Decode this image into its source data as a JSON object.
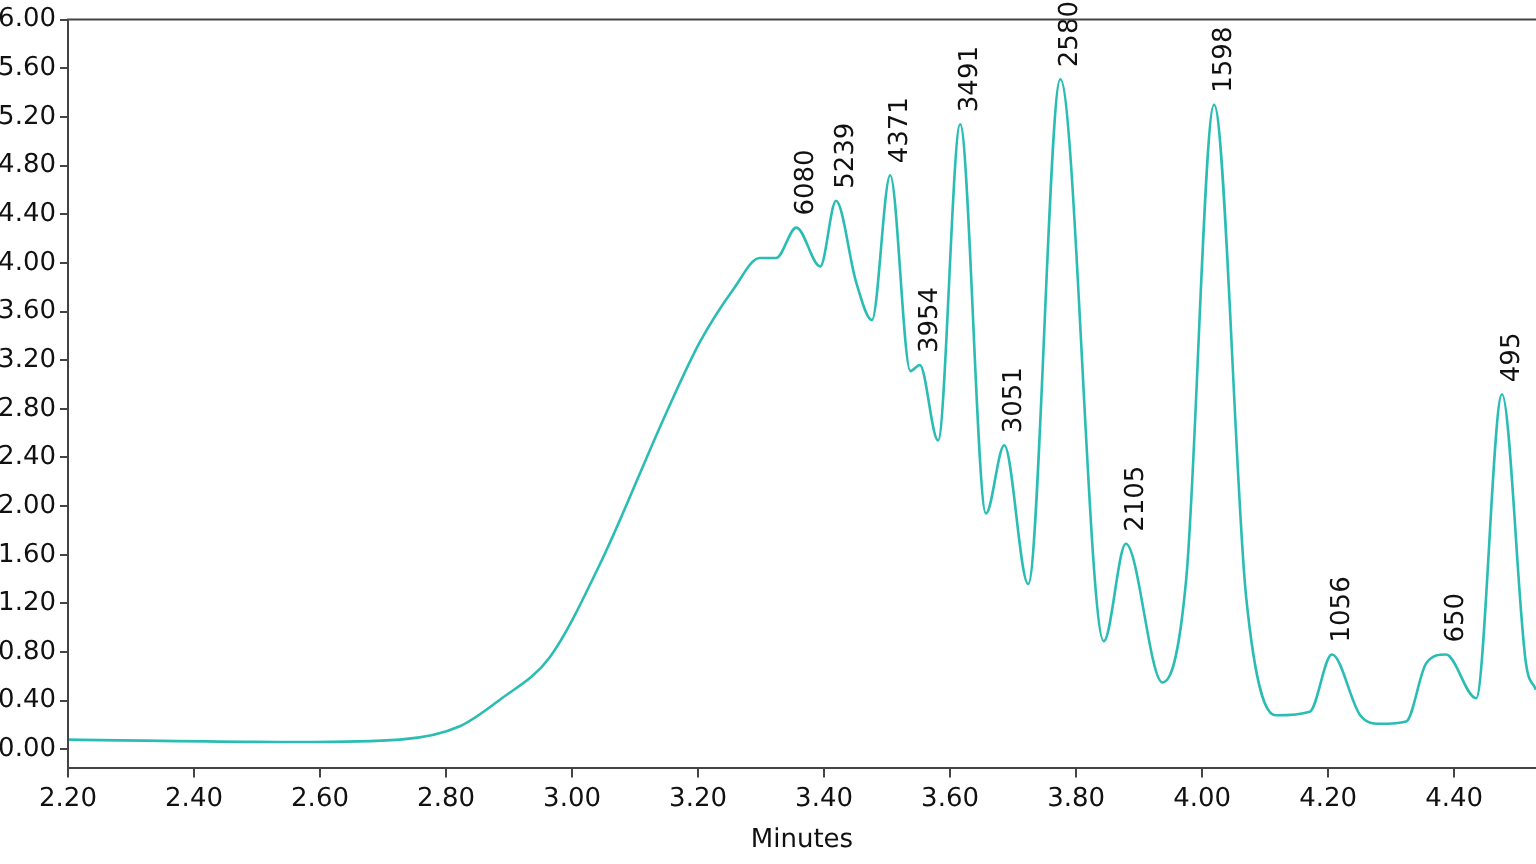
{
  "chart_data": {
    "type": "line",
    "xlabel": "Minutes",
    "xlim": [
      2.2,
      4.53
    ],
    "ylim": [
      -0.15,
      6.0
    ],
    "xticks": [
      {
        "value": 2.2,
        "label": "2.20"
      },
      {
        "value": 2.4,
        "label": "2.40"
      },
      {
        "value": 2.6,
        "label": "2.60"
      },
      {
        "value": 2.8,
        "label": "2.80"
      },
      {
        "value": 3.0,
        "label": "3.00"
      },
      {
        "value": 3.2,
        "label": "3.20"
      },
      {
        "value": 3.4,
        "label": "3.40"
      },
      {
        "value": 3.6,
        "label": "3.60"
      },
      {
        "value": 3.8,
        "label": "3.80"
      },
      {
        "value": 4.0,
        "label": "4.00"
      },
      {
        "value": 4.2,
        "label": "4.20"
      },
      {
        "value": 4.4,
        "label": "4.40"
      }
    ],
    "yticks": [
      {
        "value": 0,
        "label": "0.00"
      },
      {
        "value": 0.4,
        "label": "0.40"
      },
      {
        "value": 0.8,
        "label": "0.80"
      },
      {
        "value": 1.2,
        "label": "1.20"
      },
      {
        "value": 1.6,
        "label": "1.60"
      },
      {
        "value": 2.0,
        "label": "2.00"
      },
      {
        "value": 2.4,
        "label": "2.40"
      },
      {
        "value": 2.8,
        "label": "2.80"
      },
      {
        "value": 3.2,
        "label": "3.20"
      },
      {
        "value": 3.6,
        "label": "3.60"
      },
      {
        "value": 4.0,
        "label": "4.00"
      },
      {
        "value": 4.4,
        "label": "4.40"
      },
      {
        "value": 4.8,
        "label": "4.80"
      },
      {
        "value": 5.2,
        "label": "5.20"
      },
      {
        "value": 5.6,
        "label": "5.60"
      },
      {
        "value": 6.0,
        "label": "6.00"
      }
    ],
    "grid": false,
    "legend": false,
    "marker": "none",
    "line_style": "solid",
    "series": [
      {
        "color": "#2bbdb3",
        "x": [
          2.2,
          2.568,
          2.727,
          2.822,
          2.886,
          2.965,
          3.044,
          3.149,
          3.203,
          3.257,
          3.298,
          3.324,
          3.356,
          3.394,
          3.419,
          3.451,
          3.476,
          3.505,
          3.537,
          3.552,
          3.581,
          3.616,
          3.657,
          3.686,
          3.724,
          3.775,
          3.844,
          3.879,
          3.937,
          3.975,
          4.019,
          4.07,
          4.117,
          4.171,
          4.206,
          4.251,
          4.283,
          4.324,
          4.356,
          4.387,
          4.435,
          4.476,
          4.514,
          4.53
        ],
        "values": [
          0.08,
          0.06,
          0.08,
          0.19,
          0.41,
          0.76,
          1.52,
          2.76,
          3.35,
          3.79,
          4.04,
          4.04,
          4.29,
          3.97,
          4.51,
          3.84,
          3.53,
          4.72,
          3.11,
          3.16,
          2.54,
          5.14,
          1.94,
          2.5,
          1.36,
          5.51,
          0.89,
          1.69,
          0.55,
          1.41,
          5.3,
          1.25,
          0.28,
          0.31,
          0.78,
          0.28,
          0.21,
          0.23,
          0.71,
          0.78,
          0.42,
          2.92,
          0.71,
          0.49
        ]
      }
    ],
    "annotations": [
      {
        "text": "6080",
        "x": 3.356,
        "y": 4.29
      },
      {
        "text": "5239",
        "x": 3.419,
        "y": 4.51
      },
      {
        "text": "4371",
        "x": 3.505,
        "y": 4.72
      },
      {
        "text": "3954",
        "x": 3.552,
        "y": 3.16
      },
      {
        "text": "3491",
        "x": 3.616,
        "y": 5.14
      },
      {
        "text": "3051",
        "x": 3.686,
        "y": 2.5
      },
      {
        "text": "2580",
        "x": 3.775,
        "y": 5.51
      },
      {
        "text": "2105",
        "x": 3.879,
        "y": 1.69
      },
      {
        "text": "1598",
        "x": 4.019,
        "y": 5.3
      },
      {
        "text": "1056",
        "x": 4.206,
        "y": 0.78
      },
      {
        "text": "650",
        "x": 4.387,
        "y": 0.78
      },
      {
        "text": "495",
        "x": 4.476,
        "y": 2.92
      }
    ]
  }
}
